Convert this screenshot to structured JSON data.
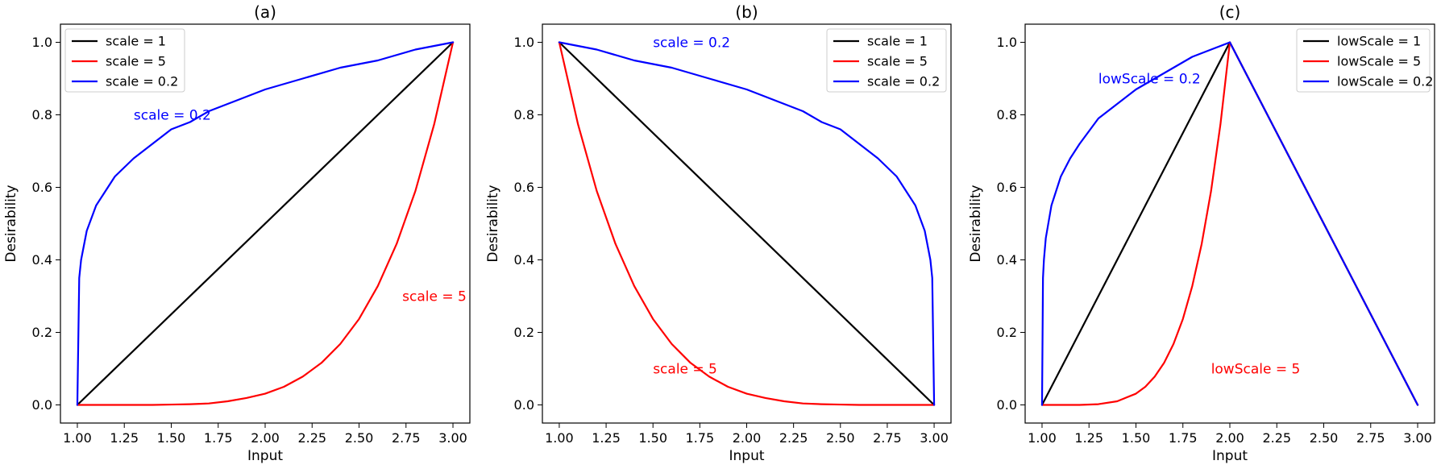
{
  "chart_data": [
    {
      "type": "line",
      "title": "(a)",
      "xlabel": "Input",
      "ylabel": "Desirability",
      "xlim": [
        0.91,
        3.09
      ],
      "ylim": [
        -0.05,
        1.05
      ],
      "xticks": [
        1.0,
        1.25,
        1.5,
        1.75,
        2.0,
        2.25,
        2.5,
        2.75,
        3.0
      ],
      "xtick_labels": [
        "1.00",
        "1.25",
        "1.50",
        "1.75",
        "2.00",
        "2.25",
        "2.50",
        "2.75",
        "3.00"
      ],
      "yticks": [
        0.0,
        0.2,
        0.4,
        0.6,
        0.8,
        1.0
      ],
      "ytick_labels": [
        "0.0",
        "0.2",
        "0.4",
        "0.6",
        "0.8",
        "1.0"
      ],
      "grid": false,
      "legend_position": "upper-left",
      "series": [
        {
          "name": "scale = 1",
          "color": "#000000",
          "x": [
            1.0,
            3.0
          ],
          "y": [
            0.0,
            1.0
          ]
        },
        {
          "name": "scale = 5",
          "color": "#ff0000",
          "x": [
            1.0,
            1.1,
            1.2,
            1.3,
            1.4,
            1.5,
            1.6,
            1.7,
            1.8,
            1.9,
            2.0,
            2.1,
            2.2,
            2.3,
            2.4,
            2.5,
            2.6,
            2.7,
            2.8,
            2.9,
            3.0
          ],
          "y": [
            0.0,
            0.0,
            0.0,
            0.0,
            0.0,
            0.001,
            0.002,
            0.004,
            0.01,
            0.019,
            0.031,
            0.05,
            0.078,
            0.116,
            0.168,
            0.237,
            0.328,
            0.444,
            0.59,
            0.774,
            1.0
          ]
        },
        {
          "name": "scale = 0.2",
          "color": "#0000ff",
          "x": [
            1.0,
            1.01,
            1.02,
            1.05,
            1.1,
            1.2,
            1.3,
            1.4,
            1.5,
            1.6,
            1.7,
            1.8,
            1.9,
            2.0,
            2.2,
            2.4,
            2.6,
            2.8,
            3.0
          ],
          "y": [
            0.0,
            0.35,
            0.4,
            0.48,
            0.55,
            0.63,
            0.68,
            0.72,
            0.76,
            0.78,
            0.81,
            0.83,
            0.85,
            0.87,
            0.9,
            0.93,
            0.95,
            0.98,
            1.0
          ]
        }
      ],
      "annotations": [
        {
          "text": "scale = 0.2",
          "x": 1.3,
          "y": 0.8,
          "color": "#0000ff"
        },
        {
          "text": "scale = 5",
          "x": 2.73,
          "y": 0.3,
          "color": "#ff0000"
        }
      ]
    },
    {
      "type": "line",
      "title": "(b)",
      "xlabel": "Input",
      "ylabel": "Desirability",
      "xlim": [
        0.91,
        3.09
      ],
      "ylim": [
        -0.05,
        1.05
      ],
      "xticks": [
        1.0,
        1.25,
        1.5,
        1.75,
        2.0,
        2.25,
        2.5,
        2.75,
        3.0
      ],
      "xtick_labels": [
        "1.00",
        "1.25",
        "1.50",
        "1.75",
        "2.00",
        "2.25",
        "2.50",
        "2.75",
        "3.00"
      ],
      "yticks": [
        0.0,
        0.2,
        0.4,
        0.6,
        0.8,
        1.0
      ],
      "ytick_labels": [
        "0.0",
        "0.2",
        "0.4",
        "0.6",
        "0.8",
        "1.0"
      ],
      "grid": false,
      "legend_position": "upper-right",
      "series": [
        {
          "name": "scale = 1",
          "color": "#000000",
          "x": [
            1.0,
            3.0
          ],
          "y": [
            1.0,
            0.0
          ]
        },
        {
          "name": "scale = 5",
          "color": "#ff0000",
          "x": [
            1.0,
            1.1,
            1.2,
            1.3,
            1.4,
            1.5,
            1.6,
            1.7,
            1.8,
            1.9,
            2.0,
            2.1,
            2.2,
            2.3,
            2.4,
            2.5,
            2.6,
            2.7,
            2.8,
            2.9,
            3.0
          ],
          "y": [
            1.0,
            0.774,
            0.59,
            0.444,
            0.328,
            0.237,
            0.168,
            0.116,
            0.078,
            0.05,
            0.031,
            0.019,
            0.01,
            0.004,
            0.002,
            0.001,
            0.0,
            0.0,
            0.0,
            0.0,
            0.0
          ]
        },
        {
          "name": "scale = 0.2",
          "color": "#0000ff",
          "x": [
            1.0,
            1.2,
            1.4,
            1.6,
            1.8,
            2.0,
            2.1,
            2.2,
            2.3,
            2.4,
            2.5,
            2.6,
            2.7,
            2.8,
            2.9,
            2.95,
            2.98,
            2.99,
            3.0
          ],
          "y": [
            1.0,
            0.98,
            0.95,
            0.93,
            0.9,
            0.87,
            0.85,
            0.83,
            0.81,
            0.78,
            0.76,
            0.72,
            0.68,
            0.63,
            0.55,
            0.48,
            0.4,
            0.35,
            0.0
          ]
        }
      ],
      "annotations": [
        {
          "text": "scale = 0.2",
          "x": 1.5,
          "y": 1.0,
          "color": "#0000ff"
        },
        {
          "text": "scale = 5",
          "x": 1.5,
          "y": 0.1,
          "color": "#ff0000"
        }
      ]
    },
    {
      "type": "line",
      "title": "(c)",
      "xlabel": "Input",
      "ylabel": "Desirability",
      "xlim": [
        0.91,
        3.09
      ],
      "ylim": [
        -0.05,
        1.05
      ],
      "xticks": [
        1.0,
        1.25,
        1.5,
        1.75,
        2.0,
        2.25,
        2.5,
        2.75,
        3.0
      ],
      "xtick_labels": [
        "1.00",
        "1.25",
        "1.50",
        "1.75",
        "2.00",
        "2.25",
        "2.50",
        "2.75",
        "3.00"
      ],
      "yticks": [
        0.0,
        0.2,
        0.4,
        0.6,
        0.8,
        1.0
      ],
      "ytick_labels": [
        "0.0",
        "0.2",
        "0.4",
        "0.6",
        "0.8",
        "1.0"
      ],
      "grid": false,
      "legend_position": "upper-right",
      "series": [
        {
          "name": "lowScale = 1",
          "color": "#000000",
          "x": [
            1.0,
            2.0,
            3.0
          ],
          "y": [
            0.0,
            1.0,
            0.0
          ]
        },
        {
          "name": "lowScale = 5",
          "color": "#ff0000",
          "x": [
            1.0,
            1.1,
            1.2,
            1.3,
            1.4,
            1.5,
            1.55,
            1.6,
            1.65,
            1.7,
            1.75,
            1.8,
            1.85,
            1.9,
            1.95,
            2.0,
            2.5,
            3.0
          ],
          "y": [
            0.0,
            0.0,
            0.0,
            0.002,
            0.01,
            0.031,
            0.05,
            0.078,
            0.116,
            0.168,
            0.237,
            0.328,
            0.444,
            0.59,
            0.774,
            1.0,
            0.5,
            0.0
          ]
        },
        {
          "name": "lowScale = 0.2",
          "color": "#0000ff",
          "x": [
            1.0,
            1.005,
            1.01,
            1.02,
            1.05,
            1.1,
            1.15,
            1.2,
            1.3,
            1.4,
            1.5,
            1.6,
            1.7,
            1.8,
            1.9,
            2.0,
            2.5,
            3.0
          ],
          "y": [
            0.0,
            0.35,
            0.4,
            0.46,
            0.55,
            0.63,
            0.68,
            0.72,
            0.79,
            0.83,
            0.87,
            0.9,
            0.93,
            0.96,
            0.98,
            1.0,
            0.5,
            0.0
          ]
        }
      ],
      "annotations": [
        {
          "text": "lowScale = 0.2",
          "x": 1.3,
          "y": 0.9,
          "color": "#0000ff"
        },
        {
          "text": "lowScale = 5",
          "x": 1.9,
          "y": 0.1,
          "color": "#ff0000"
        }
      ]
    }
  ]
}
